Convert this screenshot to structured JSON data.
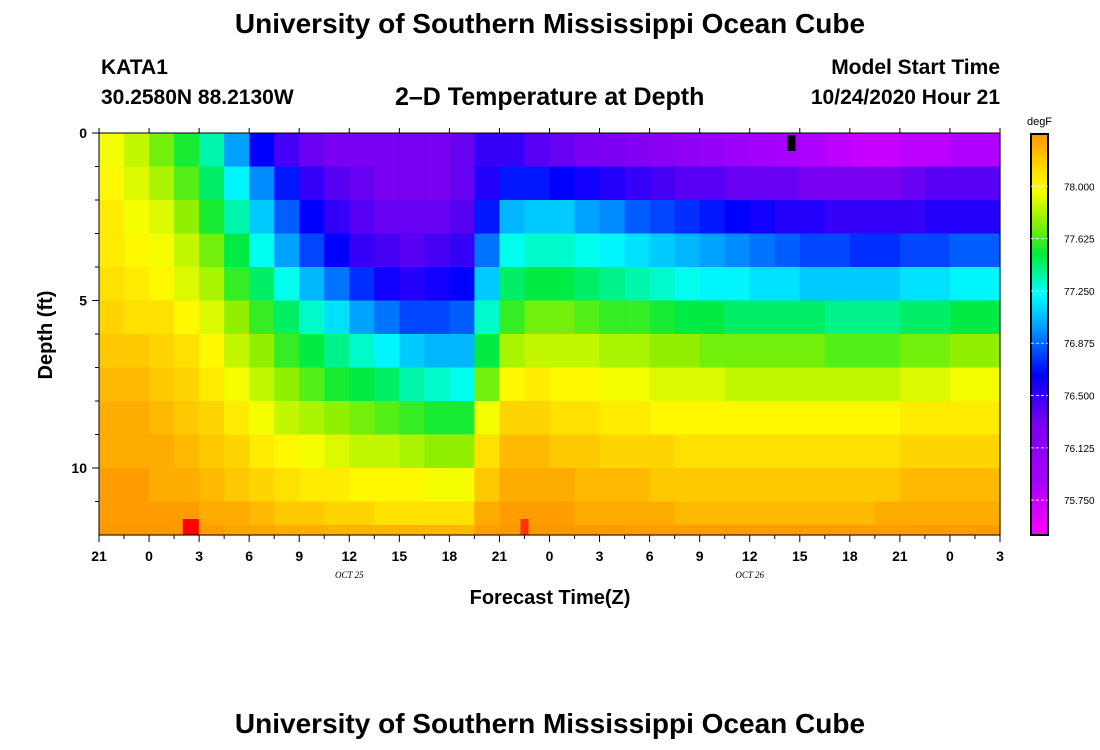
{
  "header": {
    "title": "University of Southern Mississippi Ocean Cube",
    "station": "KATA1",
    "coordinates": "30.2580N 88.2130W",
    "subtitle": "2–D Temperature at Depth",
    "start_label": "Model Start Time",
    "start_value": "10/24/2020 Hour 21"
  },
  "footer": {
    "title": "University of Southern Mississippi Ocean Cube"
  },
  "chart_data": {
    "type": "heatmap",
    "title": "2–D Temperature at Depth",
    "xlabel": "Forecast Time(Z)",
    "ylabel": "Depth (ft)",
    "x_tick_labels": [
      "21",
      "0",
      "3",
      "6",
      "9",
      "12",
      "15",
      "18",
      "21",
      "0",
      "3",
      "6",
      "9",
      "12",
      "15",
      "18",
      "21",
      "0",
      "3"
    ],
    "date_labels": [
      {
        "text": "OCT 25",
        "under_tick": 5
      },
      {
        "text": "OCT 26",
        "under_tick": 13
      }
    ],
    "y_tick_labels": [
      "0",
      "5",
      "10"
    ],
    "y_tick_values": [
      0,
      5,
      10
    ],
    "ylim": [
      0,
      12
    ],
    "x_range_hours": [
      0,
      54
    ],
    "colorbar": {
      "unit": "degF",
      "min": 75.5,
      "max": 78.375,
      "tick_labels": [
        "78.000",
        "77.625",
        "77.250",
        "76.875",
        "76.500",
        "76.125",
        "75.750"
      ],
      "tick_values": [
        78.0,
        77.625,
        77.25,
        76.875,
        76.5,
        76.125,
        75.75
      ]
    },
    "depth_levels_ft": [
      0.5,
      1.5,
      2.5,
      3.5,
      4.5,
      5.5,
      6.5,
      7.5,
      8.5,
      9.5,
      10.5,
      11.5,
      11.9
    ],
    "temperature_degF_rows": [
      [
        77.95,
        77.85,
        77.7,
        77.55,
        77.35,
        77.0,
        76.65,
        76.45,
        76.35,
        76.3,
        76.3,
        76.3,
        76.3,
        76.3,
        76.35,
        76.5,
        76.5,
        76.4,
        76.35,
        76.3,
        76.25,
        76.2,
        76.15,
        76.1,
        76.05,
        76.0,
        75.95,
        75.9,
        75.85,
        75.8,
        75.75,
        75.75,
        75.8,
        75.8,
        75.85,
        75.85
      ],
      [
        78.0,
        77.9,
        77.8,
        77.65,
        77.45,
        77.2,
        76.95,
        76.7,
        76.5,
        76.4,
        76.35,
        76.3,
        76.3,
        76.3,
        76.35,
        76.55,
        76.7,
        76.7,
        76.65,
        76.6,
        76.55,
        76.5,
        76.45,
        76.4,
        76.4,
        76.35,
        76.35,
        76.35,
        76.3,
        76.3,
        76.3,
        76.3,
        76.35,
        76.4,
        76.4,
        76.4
      ],
      [
        78.05,
        77.95,
        77.9,
        77.75,
        77.55,
        77.35,
        77.1,
        76.85,
        76.65,
        76.5,
        76.4,
        76.35,
        76.35,
        76.35,
        76.4,
        76.7,
        77.05,
        77.1,
        77.1,
        77.0,
        76.95,
        76.85,
        76.8,
        76.75,
        76.7,
        76.65,
        76.6,
        76.55,
        76.55,
        76.5,
        76.5,
        76.5,
        76.5,
        76.55,
        76.55,
        76.55
      ],
      [
        78.05,
        78.0,
        77.95,
        77.85,
        77.7,
        77.5,
        77.25,
        77.0,
        76.8,
        76.65,
        76.5,
        76.45,
        76.4,
        76.45,
        76.5,
        76.9,
        77.25,
        77.3,
        77.3,
        77.25,
        77.2,
        77.15,
        77.1,
        77.05,
        77.0,
        76.95,
        76.9,
        76.85,
        76.8,
        76.8,
        76.75,
        76.75,
        76.8,
        76.8,
        76.85,
        76.85
      ],
      [
        78.1,
        78.05,
        78.0,
        77.9,
        77.8,
        77.6,
        77.45,
        77.25,
        77.05,
        76.9,
        76.75,
        76.6,
        76.55,
        76.6,
        76.65,
        77.1,
        77.45,
        77.5,
        77.5,
        77.45,
        77.4,
        77.35,
        77.3,
        77.25,
        77.2,
        77.2,
        77.15,
        77.15,
        77.1,
        77.1,
        77.1,
        77.1,
        77.15,
        77.15,
        77.2,
        77.2
      ],
      [
        78.15,
        78.1,
        78.1,
        78.0,
        77.9,
        77.75,
        77.6,
        77.45,
        77.3,
        77.15,
        77.0,
        76.9,
        76.8,
        76.8,
        76.85,
        77.3,
        77.6,
        77.7,
        77.7,
        77.65,
        77.6,
        77.6,
        77.55,
        77.5,
        77.5,
        77.45,
        77.45,
        77.45,
        77.45,
        77.4,
        77.4,
        77.4,
        77.45,
        77.45,
        77.5,
        77.5
      ],
      [
        78.2,
        78.2,
        78.15,
        78.1,
        78.0,
        77.85,
        77.75,
        77.6,
        77.5,
        77.4,
        77.3,
        77.2,
        77.1,
        77.05,
        77.05,
        77.5,
        77.8,
        77.85,
        77.85,
        77.85,
        77.8,
        77.8,
        77.75,
        77.75,
        77.7,
        77.7,
        77.7,
        77.7,
        77.7,
        77.65,
        77.65,
        77.65,
        77.7,
        77.7,
        77.75,
        77.75
      ],
      [
        78.25,
        78.25,
        78.2,
        78.15,
        78.05,
        77.95,
        77.85,
        77.75,
        77.65,
        77.55,
        77.5,
        77.45,
        77.35,
        77.3,
        77.25,
        77.7,
        78.0,
        78.05,
        78.0,
        78.0,
        77.95,
        77.95,
        77.9,
        77.9,
        77.9,
        77.85,
        77.85,
        77.85,
        77.85,
        77.85,
        77.85,
        77.85,
        77.9,
        77.9,
        77.95,
        77.95
      ],
      [
        78.3,
        78.3,
        78.25,
        78.2,
        78.15,
        78.05,
        77.95,
        77.85,
        77.8,
        77.75,
        77.7,
        77.65,
        77.6,
        77.55,
        77.55,
        77.95,
        78.15,
        78.15,
        78.1,
        78.1,
        78.05,
        78.05,
        78.0,
        78.0,
        78.0,
        78.0,
        78.0,
        78.0,
        78.0,
        78.0,
        78.0,
        78.0,
        78.05,
        78.05,
        78.05,
        78.05
      ],
      [
        78.3,
        78.3,
        78.3,
        78.25,
        78.2,
        78.15,
        78.05,
        78.0,
        77.95,
        77.9,
        77.85,
        77.85,
        77.8,
        77.75,
        77.75,
        78.1,
        78.25,
        78.25,
        78.2,
        78.2,
        78.15,
        78.15,
        78.15,
        78.1,
        78.1,
        78.1,
        78.1,
        78.1,
        78.1,
        78.1,
        78.1,
        78.1,
        78.15,
        78.15,
        78.15,
        78.15
      ],
      [
        78.35,
        78.35,
        78.3,
        78.3,
        78.25,
        78.2,
        78.15,
        78.1,
        78.05,
        78.05,
        78.0,
        78.0,
        78.0,
        77.95,
        77.95,
        78.2,
        78.3,
        78.3,
        78.3,
        78.25,
        78.25,
        78.25,
        78.2,
        78.2,
        78.2,
        78.2,
        78.2,
        78.2,
        78.2,
        78.2,
        78.2,
        78.2,
        78.25,
        78.25,
        78.25,
        78.25
      ],
      [
        78.35,
        78.35,
        78.35,
        78.35,
        78.3,
        78.3,
        78.25,
        78.2,
        78.2,
        78.15,
        78.15,
        78.1,
        78.1,
        78.1,
        78.1,
        78.3,
        78.35,
        78.35,
        78.35,
        78.3,
        78.3,
        78.3,
        78.3,
        78.25,
        78.25,
        78.25,
        78.25,
        78.25,
        78.25,
        78.25,
        78.25,
        78.3,
        78.3,
        78.3,
        78.3,
        78.3
      ],
      [
        78.37,
        78.37,
        78.37,
        78.36,
        78.35,
        78.33,
        78.32,
        78.3,
        78.3,
        78.28,
        78.28,
        78.27,
        78.27,
        78.26,
        78.26,
        78.35,
        78.37,
        78.37,
        78.37,
        78.36,
        78.36,
        78.35,
        78.35,
        78.35,
        78.35,
        78.35,
        78.35,
        78.35,
        78.35,
        78.35,
        78.35,
        78.35,
        78.36,
        78.36,
        78.36,
        78.36
      ]
    ],
    "markers": [
      {
        "color": "#000000",
        "hour": 41.5,
        "depth_ft": 0.1
      },
      {
        "color": "#ff0000",
        "hour": 5.5,
        "depth_ft": 11.9
      },
      {
        "color": "#ff3300",
        "hour": 25.5,
        "depth_ft": 11.9
      }
    ]
  }
}
